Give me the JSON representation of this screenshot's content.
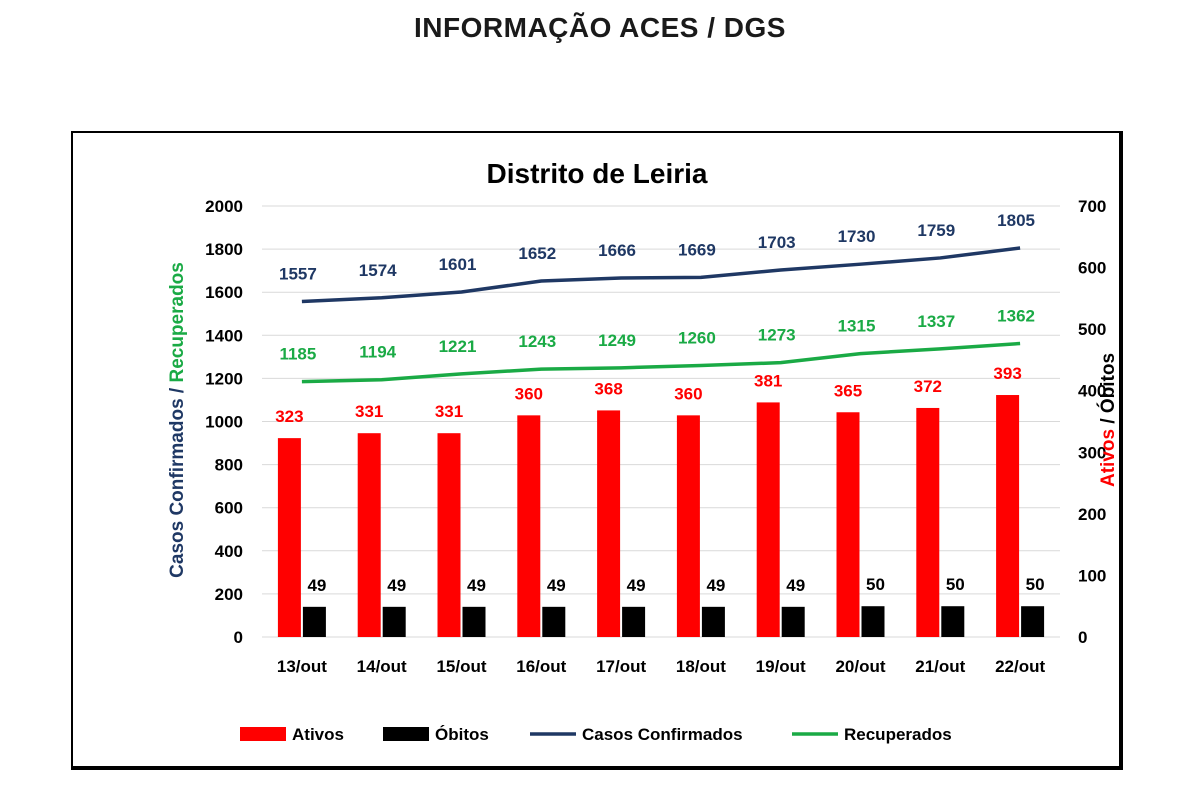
{
  "header": {
    "title": "INFORMAÇÃO ACES / DGS"
  },
  "colors": {
    "ativos": "#ff0000",
    "obitos": "#000000",
    "confirmados": "#1f3864",
    "recuperados": "#1aaa45",
    "grid": "#d9d9d9"
  },
  "chart_data": {
    "type": "bar",
    "title": "Distrito de Leiria",
    "categories": [
      "13/out",
      "14/out",
      "15/out",
      "16/out",
      "17/out",
      "18/out",
      "19/out",
      "20/out",
      "21/out",
      "22/out"
    ],
    "ylabel_left_part1": "Casos Confirmados /",
    "ylabel_left_part2": "Recuperados",
    "ylabel_right_part1": "Ativos",
    "ylabel_right_part2": " / Óbitos",
    "ylim_left": [
      0,
      2000
    ],
    "ylim_right": [
      0,
      700
    ],
    "yticks_left": [
      "0",
      "200",
      "400",
      "600",
      "800",
      "1000",
      "1200",
      "1400",
      "1600",
      "1800",
      "2000"
    ],
    "yticks_right": [
      "0",
      "100",
      "200",
      "300",
      "400",
      "500",
      "600",
      "700"
    ],
    "grid": true,
    "legend_position": "bottom",
    "series": [
      {
        "name": "Ativos",
        "type": "bar",
        "axis": "right",
        "values": [
          323,
          331,
          331,
          360,
          368,
          360,
          381,
          365,
          372,
          393
        ]
      },
      {
        "name": "Óbitos",
        "type": "bar",
        "axis": "right",
        "values": [
          49,
          49,
          49,
          49,
          49,
          49,
          49,
          50,
          50,
          50
        ]
      },
      {
        "name": "Casos Confirmados",
        "type": "line",
        "axis": "left",
        "values": [
          1557,
          1574,
          1601,
          1652,
          1666,
          1669,
          1703,
          1730,
          1759,
          1805
        ]
      },
      {
        "name": "Recuperados",
        "type": "line",
        "axis": "left",
        "values": [
          1185,
          1194,
          1221,
          1243,
          1249,
          1260,
          1273,
          1315,
          1337,
          1362
        ]
      }
    ]
  }
}
